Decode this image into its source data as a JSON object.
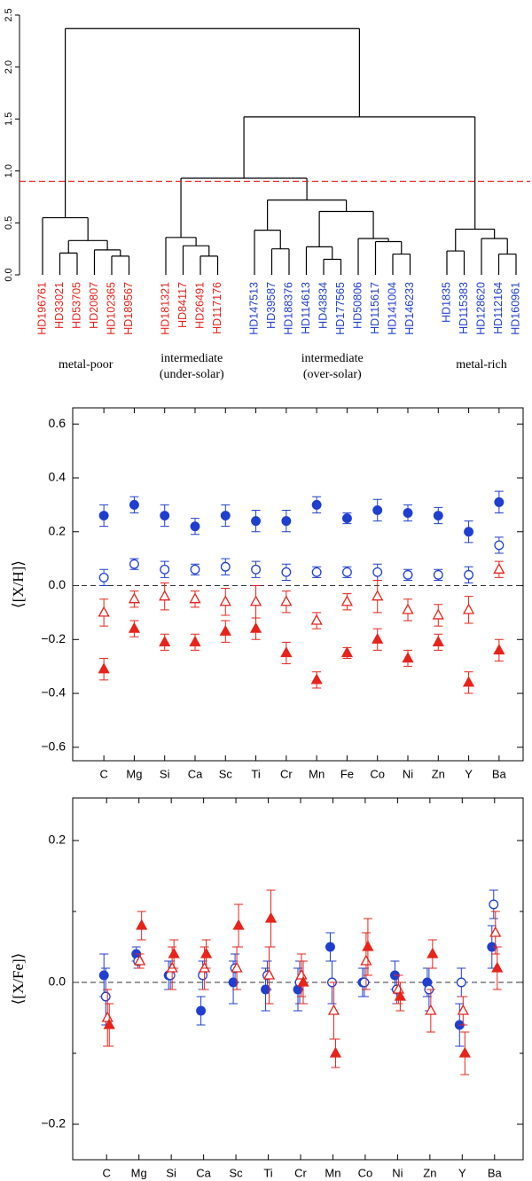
{
  "chart_data": [
    {
      "type": "dendrogram",
      "ylim": [
        0,
        2.5
      ],
      "yticks": [
        {
          "value": 0,
          "label": "0.0"
        },
        {
          "value": 0.5,
          "label": "0.5"
        },
        {
          "value": 1,
          "label": "1.0"
        },
        {
          "value": 1.5,
          "label": "1.5"
        },
        {
          "value": 2,
          "label": "2.0"
        },
        {
          "value": 2.5,
          "label": "2.5"
        }
      ],
      "cut": 0.9,
      "cut_color": "#e8231a",
      "tree": {
        "height": 2.37,
        "children": [
          {
            "height": 0.55,
            "label": "metal-poor",
            "children": [
              {
                "label": "HD196761",
                "color": "#e8231a"
              },
              {
                "height": 0.33,
                "children": [
                  {
                    "height": 0.21,
                    "children": [
                      {
                        "label": "HD33021",
                        "color": "#e8231a"
                      },
                      {
                        "label": "HD53705",
                        "color": "#e8231a"
                      }
                    ]
                  },
                  {
                    "height": 0.24,
                    "children": [
                      {
                        "label": "HD20807",
                        "color": "#e8231a"
                      },
                      {
                        "height": 0.18,
                        "children": [
                          {
                            "label": "HD102365",
                            "color": "#e8231a"
                          },
                          {
                            "label": "HD189567",
                            "color": "#e8231a"
                          }
                        ]
                      }
                    ]
                  }
                ]
              }
            ]
          },
          {
            "height": 1.52,
            "children": [
              {
                "height": 0.93,
                "children": [
                  {
                    "height": 0.36,
                    "label": [
                      "intermediate",
                      "(under-solar)"
                    ],
                    "children": [
                      {
                        "label": "HD181321",
                        "color": "#e8231a"
                      },
                      {
                        "height": 0.28,
                        "children": [
                          {
                            "label": "HD84117",
                            "color": "#e8231a"
                          },
                          {
                            "height": 0.18,
                            "children": [
                              {
                                "label": "HD26491",
                                "color": "#e8231a"
                              },
                              {
                                "label": "HD117176",
                                "color": "#e8231a"
                              }
                            ]
                          }
                        ]
                      }
                    ]
                  },
                  {
                    "height": 0.72,
                    "label": [
                      "intermediate",
                      "(over-solar)"
                    ],
                    "children": [
                      {
                        "height": 0.43,
                        "children": [
                          {
                            "label": "HD147513",
                            "color": "#1f3fd0"
                          },
                          {
                            "height": 0.25,
                            "children": [
                              {
                                "label": "HD39587",
                                "color": "#1f3fd0"
                              },
                              {
                                "label": "HD188376",
                                "color": "#1f3fd0"
                              }
                            ]
                          }
                        ]
                      },
                      {
                        "height": 0.61,
                        "children": [
                          {
                            "height": 0.27,
                            "children": [
                              {
                                "label": "HD114613",
                                "color": "#1f3fd0"
                              },
                              {
                                "height": 0.15,
                                "children": [
                                  {
                                    "label": "HD43834",
                                    "color": "#1f3fd0"
                                  },
                                  {
                                    "label": "HD177565",
                                    "color": "#1f3fd0"
                                  }
                                ]
                              }
                            ]
                          },
                          {
                            "height": 0.35,
                            "children": [
                              {
                                "label": "HD50806",
                                "color": "#1f3fd0"
                              },
                              {
                                "height": 0.32,
                                "children": [
                                  {
                                    "label": "HD115617",
                                    "color": "#1f3fd0"
                                  },
                                  {
                                    "height": 0.2,
                                    "children": [
                                      {
                                        "label": "HD141004",
                                        "color": "#1f3fd0"
                                      },
                                      {
                                        "label": "HD146233",
                                        "color": "#1f3fd0"
                                      }
                                    ]
                                  }
                                ]
                              }
                            ]
                          }
                        ]
                      }
                    ]
                  }
                ]
              },
              {
                "height": 0.44,
                "label": "metal-rich",
                "children": [
                  {
                    "height": 0.23,
                    "children": [
                      {
                        "label": "HD1835",
                        "color": "#1f3fd0"
                      },
                      {
                        "label": "HD115383",
                        "color": "#1f3fd0"
                      }
                    ]
                  },
                  {
                    "height": 0.35,
                    "children": [
                      {
                        "label": "HD128620",
                        "color": "#1f3fd0"
                      },
                      {
                        "height": 0.2,
                        "children": [
                          {
                            "label": "HD112164",
                            "color": "#1f3fd0"
                          },
                          {
                            "label": "HD160961",
                            "color": "#1f3fd0"
                          }
                        ]
                      }
                    ]
                  }
                ]
              }
            ]
          }
        ]
      }
    },
    {
      "type": "errorscatter",
      "ylabel": "⟨[X/H]⟩",
      "categories": [
        "C",
        "Mg",
        "Si",
        "Ca",
        "Sc",
        "Ti",
        "Cr",
        "Mn",
        "Fe",
        "Co",
        "Ni",
        "Zn",
        "Y",
        "Ba"
      ],
      "ylim": [
        -0.65,
        0.66
      ],
      "yticks": [
        {
          "value": -0.6,
          "label": "−0.6"
        },
        {
          "value": -0.4,
          "label": "−0.4"
        },
        {
          "value": -0.2,
          "label": "−0.2"
        },
        {
          "value": 0,
          "label": "0.0"
        },
        {
          "value": 0.2,
          "label": "0.2"
        },
        {
          "value": 0.4,
          "label": "0.4"
        },
        {
          "value": 0.6,
          "label": "0.6"
        }
      ],
      "hline": 0,
      "series": [
        {
          "color": "#1f3fd0",
          "marker": "filled-circle",
          "values": [
            0.26,
            0.3,
            0.26,
            0.22,
            0.26,
            0.24,
            0.24,
            0.3,
            0.25,
            0.28,
            0.27,
            0.26,
            0.2,
            0.31
          ],
          "errors": [
            0.04,
            0.03,
            0.04,
            0.03,
            0.04,
            0.04,
            0.04,
            0.03,
            0.02,
            0.04,
            0.03,
            0.03,
            0.04,
            0.04
          ]
        },
        {
          "color": "#1f3fd0",
          "marker": "open-circle",
          "values": [
            0.03,
            0.08,
            0.06,
            0.06,
            0.07,
            0.06,
            0.05,
            0.05,
            0.05,
            0.05,
            0.04,
            0.04,
            0.04,
            0.15
          ],
          "errors": [
            0.03,
            0.02,
            0.03,
            0.02,
            0.03,
            0.03,
            0.03,
            0.02,
            0.02,
            0.03,
            0.02,
            0.02,
            0.03,
            0.03
          ]
        },
        {
          "color": "#e8231a",
          "marker": "open-triangle",
          "values": [
            -0.1,
            -0.05,
            -0.04,
            -0.05,
            -0.06,
            -0.06,
            -0.06,
            -0.13,
            -0.06,
            -0.04,
            -0.09,
            -0.11,
            -0.09,
            0.06
          ],
          "errors": [
            0.05,
            0.03,
            0.05,
            0.03,
            0.05,
            0.06,
            0.04,
            0.03,
            0.03,
            0.06,
            0.04,
            0.04,
            0.05,
            0.03
          ]
        },
        {
          "color": "#e8231a",
          "marker": "filled-triangle",
          "values": [
            -0.31,
            -0.16,
            -0.21,
            -0.21,
            -0.17,
            -0.16,
            -0.25,
            -0.35,
            -0.25,
            -0.2,
            -0.27,
            -0.21,
            -0.36,
            -0.24
          ],
          "errors": [
            0.04,
            0.03,
            0.03,
            0.03,
            0.04,
            0.04,
            0.04,
            0.03,
            0.02,
            0.04,
            0.03,
            0.03,
            0.04,
            0.04
          ]
        }
      ]
    },
    {
      "type": "errorscatter",
      "ylabel": "⟨[X/Fe]⟩",
      "categories": [
        "C",
        "Mg",
        "Si",
        "Ca",
        "Sc",
        "Ti",
        "Cr",
        "Mn",
        "Co",
        "Ni",
        "Zn",
        "Y",
        "Ba"
      ],
      "ylim": [
        -0.25,
        0.26
      ],
      "yticks": [
        {
          "value": -0.2,
          "label": "−0.2"
        },
        {
          "value": 0,
          "label": "0.0"
        },
        {
          "value": 0.2,
          "label": "0.2"
        }
      ],
      "minor_yticks": [
        -0.1,
        0.1
      ],
      "hline": 0,
      "series": [
        {
          "color": "#1f3fd0",
          "marker": "filled-circle",
          "values": [
            0.01,
            0.04,
            0.01,
            -0.04,
            0.0,
            -0.01,
            -0.01,
            0.05,
            0.0,
            0.01,
            0.0,
            -0.06,
            0.05
          ],
          "errors": [
            0.03,
            0.01,
            0.02,
            0.02,
            0.03,
            0.03,
            0.03,
            0.02,
            0.02,
            0.02,
            0.02,
            0.03,
            0.03
          ]
        },
        {
          "color": "#1f3fd0",
          "marker": "open-circle",
          "values": [
            -0.02,
            0.03,
            0.01,
            0.01,
            0.02,
            0.01,
            0.0,
            0.0,
            0.0,
            -0.01,
            -0.01,
            0.0,
            0.11
          ],
          "errors": [
            0.04,
            0.01,
            0.02,
            0.02,
            0.02,
            0.02,
            0.03,
            0.03,
            0.02,
            0.02,
            0.03,
            0.02,
            0.02
          ]
        },
        {
          "color": "#e8231a",
          "marker": "open-triangle",
          "values": [
            -0.05,
            0.03,
            0.02,
            0.02,
            0.02,
            0.01,
            0.01,
            -0.04,
            0.03,
            -0.01,
            -0.04,
            -0.04,
            0.07
          ],
          "errors": [
            0.04,
            0.01,
            0.03,
            0.03,
            0.03,
            0.04,
            0.03,
            0.04,
            0.04,
            0.02,
            0.03,
            0.02,
            0.03
          ]
        },
        {
          "color": "#e8231a",
          "marker": "filled-triangle",
          "values": [
            -0.06,
            0.08,
            0.04,
            0.04,
            0.08,
            0.09,
            0.0,
            -0.1,
            0.05,
            -0.02,
            0.04,
            -0.1,
            0.02
          ],
          "errors": [
            0.03,
            0.02,
            0.02,
            0.02,
            0.03,
            0.04,
            0.03,
            0.02,
            0.04,
            0.02,
            0.02,
            0.03,
            0.03
          ]
        }
      ]
    }
  ]
}
